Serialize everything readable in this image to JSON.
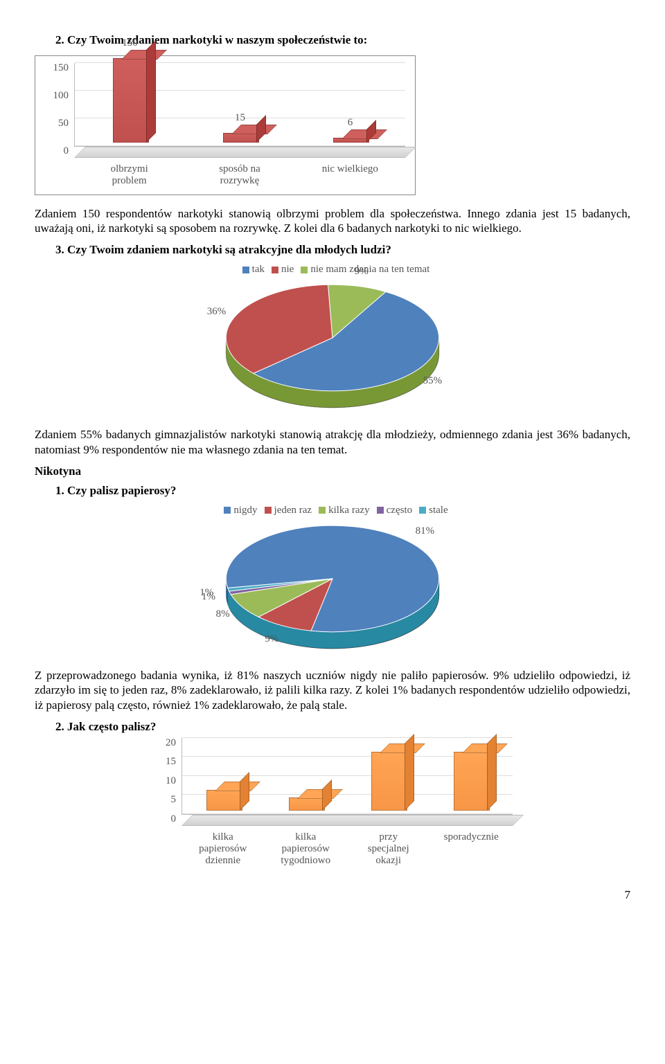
{
  "q2": {
    "title": "2.   Czy Twoim zdaniem narkotyki w naszym społeczeństwie to:",
    "chart": {
      "type": "bar",
      "categories": [
        "olbrzymi\nproblem",
        "sposób na\nrozrywkę",
        "nic wielkiego"
      ],
      "values": [
        150,
        15,
        6
      ],
      "bar_colors": [
        "#c0504d",
        "#c0504d",
        "#c0504d"
      ],
      "ylim": [
        0,
        150
      ],
      "yticks": [
        0,
        50,
        100,
        150
      ],
      "label_fontsize": 15,
      "background_color": "#ffffff",
      "border_color": "#888888"
    },
    "paragraph": "Zdaniem 150 respondentów narkotyki stanowią olbrzymi problem dla społeczeństwa. Innego zdania jest 15 badanych, uważają oni, iż narkotyki są sposobem na rozrywkę. Z kolei dla 6 badanych narkotyki to nic wielkiego."
  },
  "q3": {
    "title": "3.   Czy Twoim zdaniem narkotyki są atrakcyjne dla młodych ludzi?",
    "chart": {
      "type": "pie",
      "legend": [
        {
          "label": "tak",
          "color": "#4f81bd"
        },
        {
          "label": "nie",
          "color": "#c0504d"
        },
        {
          "label": "nie mam zdania na ten temat",
          "color": "#9bbb59"
        }
      ],
      "slices": [
        {
          "label": "55%",
          "value": 55,
          "color": "#4f81bd"
        },
        {
          "label": "36%",
          "value": 36,
          "color": "#c0504d"
        },
        {
          "label": "9%",
          "value": 9,
          "color": "#9bbb59"
        }
      ],
      "background_color": "#ffffff"
    },
    "paragraph": "Zdaniem 55% badanych gimnazjalistów narkotyki stanowią atrakcję dla młodzieży, odmiennego zdania jest 36% badanych, natomiast 9% respondentów nie ma własnego zdania na ten temat."
  },
  "nikotyna": {
    "section": "Nikotyna",
    "q1": {
      "title": "1.   Czy palisz papierosy?",
      "chart": {
        "type": "pie",
        "legend": [
          {
            "label": "nigdy",
            "color": "#4f81bd"
          },
          {
            "label": "jeden raz",
            "color": "#c0504d"
          },
          {
            "label": "kilka razy",
            "color": "#9bbb59"
          },
          {
            "label": "często",
            "color": "#8064a2"
          },
          {
            "label": "stale",
            "color": "#4bacc6"
          }
        ],
        "slices": [
          {
            "label": "81%",
            "value": 81,
            "color": "#4f81bd"
          },
          {
            "label": "9%",
            "value": 9,
            "color": "#c0504d"
          },
          {
            "label": "8%",
            "value": 8,
            "color": "#9bbb59"
          },
          {
            "label": "1%",
            "value": 1,
            "color": "#8064a2"
          },
          {
            "label": "1%",
            "value": 1,
            "color": "#4bacc6"
          }
        ],
        "background_color": "#ffffff"
      },
      "paragraph": "Z przeprowadzonego badania wynika, iż 81% naszych uczniów nigdy nie paliło papierosów. 9% udzieliło odpowiedzi, iż zdarzyło im się to jeden raz, 8% zadeklarowało, iż palili kilka razy. Z kolei 1% badanych respondentów udzieliło odpowiedzi, iż papierosy palą często, również 1% zadeklarowało, że palą stale."
    },
    "q2": {
      "title": "2.   Jak często palisz?",
      "chart": {
        "type": "bar",
        "categories": [
          "kilka\npapierosów\ndziennie",
          "kilka\npapierosów\ntygodniowo",
          "przy\nspecjalnej\nokazji",
          "sporadycznie"
        ],
        "values": [
          5,
          3,
          15,
          15
        ],
        "bar_colors": [
          "#f79646",
          "#f79646",
          "#f79646",
          "#f79646"
        ],
        "ylim": [
          0,
          20
        ],
        "yticks": [
          0,
          5,
          10,
          15,
          20
        ],
        "label_fontsize": 15,
        "border_color": "#888888"
      }
    }
  },
  "page_number": "7"
}
